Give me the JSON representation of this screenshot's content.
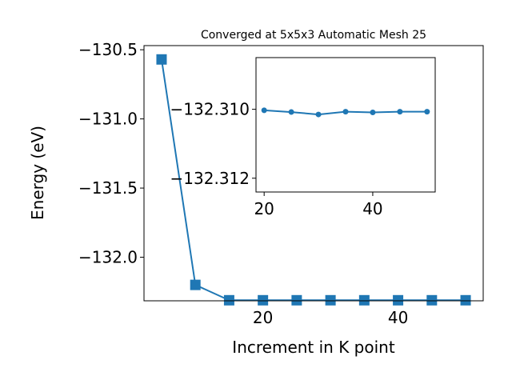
{
  "chart_data": [
    {
      "type": "line",
      "title": "Converged at 5x5x3 Automatic Mesh 25",
      "xlabel": "Increment in K point",
      "ylabel": "Energy (eV)",
      "xlim": [
        2.4,
        52.6
      ],
      "ylim": [
        -132.315,
        -130.47
      ],
      "xticks": [
        20,
        40
      ],
      "yticks": [
        -130.5,
        -131.0,
        -131.5,
        -132.0
      ],
      "ytick_labels": [
        "−130.5",
        "−131.0",
        "−131.5",
        "−132.0"
      ],
      "grid": false,
      "marker": "square",
      "series": [
        {
          "color": "#1f77b4",
          "x": [
            5,
            10,
            15,
            20,
            25,
            30,
            35,
            40,
            45,
            50
          ],
          "y": [
            -130.57,
            -132.2,
            -132.311,
            -132.311,
            -132.311,
            -132.311,
            -132.311,
            -132.311,
            -132.311,
            -132.311
          ]
        }
      ]
    },
    {
      "type": "line",
      "title": "",
      "xlabel": "",
      "ylabel": "",
      "xlim": [
        18.5,
        51.5
      ],
      "ylim": [
        -132.3124,
        -132.3085
      ],
      "xticks": [
        20,
        40
      ],
      "yticks": [
        -132.312,
        -132.31
      ],
      "ytick_labels": [
        "−132.312",
        "−132.310"
      ],
      "grid": false,
      "marker": "circle",
      "series": [
        {
          "color": "#1f77b4",
          "x": [
            20,
            25,
            30,
            35,
            40,
            45,
            50
          ],
          "y": [
            -132.31003,
            -132.31008,
            -132.31015,
            -132.31007,
            -132.31009,
            -132.31007,
            -132.31007
          ]
        }
      ]
    }
  ]
}
